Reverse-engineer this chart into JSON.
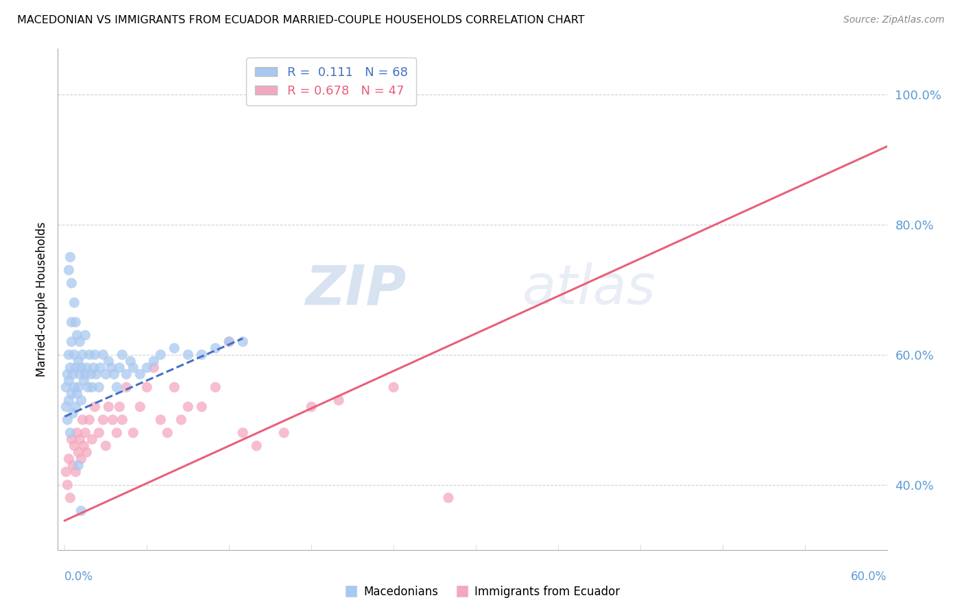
{
  "title": "MACEDONIAN VS IMMIGRANTS FROM ECUADOR MARRIED-COUPLE HOUSEHOLDS CORRELATION CHART",
  "source": "Source: ZipAtlas.com",
  "ylabel": "Married-couple Households",
  "watermark": "ZIPatlas",
  "blue_R": 0.111,
  "blue_N": 68,
  "pink_R": 0.678,
  "pink_N": 47,
  "blue_color": "#A8C8F0",
  "pink_color": "#F4A8C0",
  "blue_line_color": "#4472C4",
  "pink_line_color": "#E8607A",
  "background_color": "#FFFFFF",
  "grid_color": "#CCCCCC",
  "axis_label_color": "#5B9BD5",
  "blue_scatter_x": [
    0.001,
    0.001,
    0.002,
    0.002,
    0.003,
    0.003,
    0.003,
    0.004,
    0.004,
    0.005,
    0.005,
    0.005,
    0.006,
    0.006,
    0.007,
    0.007,
    0.008,
    0.008,
    0.009,
    0.009,
    0.01,
    0.01,
    0.011,
    0.011,
    0.012,
    0.012,
    0.013,
    0.014,
    0.015,
    0.015,
    0.016,
    0.017,
    0.018,
    0.019,
    0.02,
    0.021,
    0.022,
    0.023,
    0.025,
    0.026,
    0.028,
    0.03,
    0.032,
    0.034,
    0.036,
    0.038,
    0.04,
    0.042,
    0.045,
    0.048,
    0.05,
    0.055,
    0.06,
    0.065,
    0.07,
    0.08,
    0.09,
    0.1,
    0.11,
    0.12,
    0.13,
    0.003,
    0.004,
    0.005,
    0.007,
    0.008,
    0.01,
    0.012
  ],
  "blue_scatter_y": [
    0.52,
    0.55,
    0.5,
    0.57,
    0.53,
    0.56,
    0.6,
    0.48,
    0.58,
    0.54,
    0.62,
    0.65,
    0.51,
    0.57,
    0.55,
    0.6,
    0.52,
    0.58,
    0.54,
    0.63,
    0.55,
    0.59,
    0.57,
    0.62,
    0.53,
    0.58,
    0.6,
    0.56,
    0.57,
    0.63,
    0.58,
    0.55,
    0.6,
    0.57,
    0.55,
    0.58,
    0.6,
    0.57,
    0.55,
    0.58,
    0.6,
    0.57,
    0.59,
    0.58,
    0.57,
    0.55,
    0.58,
    0.6,
    0.57,
    0.59,
    0.58,
    0.57,
    0.58,
    0.59,
    0.6,
    0.61,
    0.6,
    0.6,
    0.61,
    0.62,
    0.62,
    0.73,
    0.75,
    0.71,
    0.68,
    0.65,
    0.43,
    0.36
  ],
  "pink_scatter_x": [
    0.001,
    0.002,
    0.003,
    0.004,
    0.005,
    0.006,
    0.007,
    0.008,
    0.009,
    0.01,
    0.011,
    0.012,
    0.013,
    0.014,
    0.015,
    0.016,
    0.018,
    0.02,
    0.022,
    0.025,
    0.028,
    0.03,
    0.032,
    0.035,
    0.038,
    0.04,
    0.042,
    0.045,
    0.05,
    0.055,
    0.06,
    0.065,
    0.07,
    0.075,
    0.08,
    0.085,
    0.09,
    0.1,
    0.11,
    0.12,
    0.13,
    0.14,
    0.16,
    0.18,
    0.2,
    0.24,
    0.28
  ],
  "pink_scatter_y": [
    0.42,
    0.4,
    0.44,
    0.38,
    0.47,
    0.43,
    0.46,
    0.42,
    0.48,
    0.45,
    0.47,
    0.44,
    0.5,
    0.46,
    0.48,
    0.45,
    0.5,
    0.47,
    0.52,
    0.48,
    0.5,
    0.46,
    0.52,
    0.5,
    0.48,
    0.52,
    0.5,
    0.55,
    0.48,
    0.52,
    0.55,
    0.58,
    0.5,
    0.48,
    0.55,
    0.5,
    0.52,
    0.52,
    0.55,
    0.62,
    0.48,
    0.46,
    0.48,
    0.52,
    0.53,
    0.55,
    0.38
  ],
  "blue_trend_x": [
    0.0,
    0.13
  ],
  "blue_trend_y": [
    0.505,
    0.625
  ],
  "pink_trend_x": [
    0.0,
    0.6
  ],
  "pink_trend_y": [
    0.345,
    0.92
  ],
  "xlim": [
    -0.005,
    0.6
  ],
  "ylim": [
    0.3,
    1.07
  ],
  "yticks": [
    0.4,
    0.6,
    0.8,
    1.0
  ],
  "ytick_labels": [
    "40.0%",
    "60.0%",
    "80.0%",
    "100.0%"
  ],
  "xtick_pos": [
    0.0,
    0.3,
    0.6
  ],
  "figsize": [
    14.06,
    8.92
  ],
  "dpi": 100
}
